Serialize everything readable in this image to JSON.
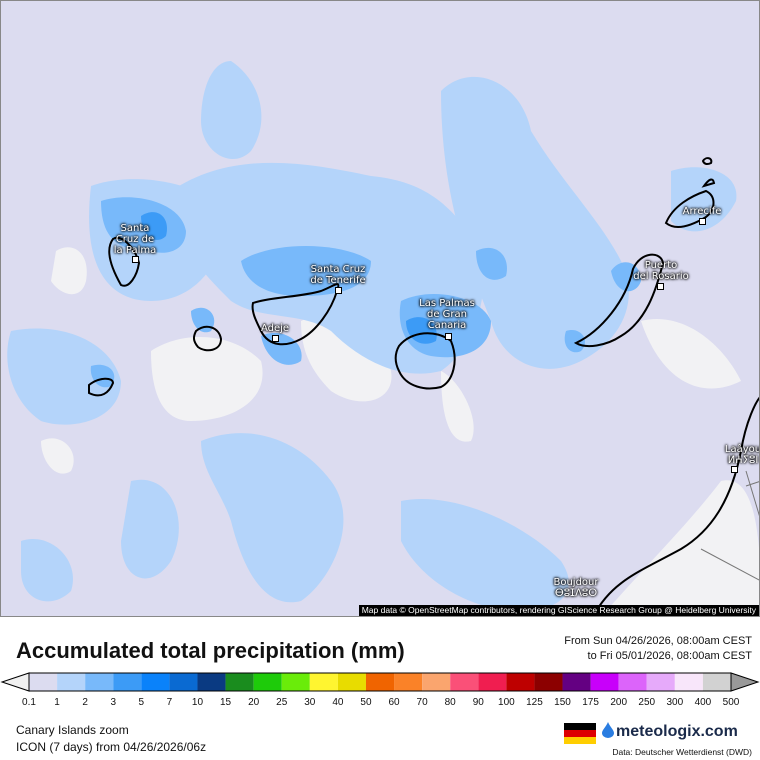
{
  "map": {
    "cities": [
      {
        "name": "Santa Cruz de la Palma",
        "lines": [
          "Santa",
          "Cruz de",
          "la Palma"
        ]
      },
      {
        "name": "Santa Cruz de Tenerife",
        "lines": [
          "Santa Cruz",
          "de Tenerife"
        ]
      },
      {
        "name": "Adeje",
        "lines": [
          "Adeje"
        ]
      },
      {
        "name": "Las Palmas de Gran Canaria",
        "lines": [
          "Las Palmas",
          "de Gran",
          "Canaria"
        ]
      },
      {
        "name": "Puerto del Rosario",
        "lines": [
          "Puerto",
          "del Rosario"
        ]
      },
      {
        "name": "Arrecife",
        "lines": [
          "Arrecife"
        ]
      },
      {
        "name": "Laâyoune",
        "lines": [
          "Laâyou",
          "ⵍⵄⵢⵓⵏ"
        ]
      },
      {
        "name": "Boujdour",
        "lines": [
          "Boujdour",
          "ⴱⵓⵊⴷⵓⵔ"
        ]
      }
    ],
    "attribution": "Map data © OpenStreetMap contributors, rendering GIScience Research Group @ Heidelberg University"
  },
  "legend": {
    "title": "Accumulated total precipitation (mm)",
    "period_from": "From Sun 04/26/2026, 08:00am CEST",
    "period_to": "to Fri 05/01/2026, 08:00am CEST",
    "ticks": [
      "0.1",
      "1",
      "2",
      "3",
      "5",
      "7",
      "10",
      "15",
      "20",
      "25",
      "30",
      "40",
      "50",
      "60",
      "70",
      "80",
      "90",
      "100",
      "125",
      "150",
      "175",
      "200",
      "250",
      "300",
      "400",
      "500"
    ],
    "colors": [
      "#dcdcf0",
      "#b4d4fa",
      "#78b9fa",
      "#3c9bf6",
      "#0a82fa",
      "#0a6ad2",
      "#0a3a82",
      "#1a8c1e",
      "#1ecb0a",
      "#6aec0a",
      "#fff530",
      "#e8dc00",
      "#f06400",
      "#fa8228",
      "#faa56e",
      "#fa5078",
      "#f01e50",
      "#be0000",
      "#8c0000",
      "#640082",
      "#c800fa",
      "#dc64fa",
      "#e6aafa",
      "#f8e6fa",
      "#d2d2d2"
    ],
    "under_color": "#f0f0f0",
    "over_color": "#999999"
  },
  "footer": {
    "region": "Canary Islands zoom",
    "model": "ICON (7 days) from  04/26/2026/06z",
    "brand": "meteologix.com",
    "source": "Data: Deutscher Wetterdienst  (DWD)",
    "flag_colors": [
      "#000000",
      "#dd0000",
      "#ffce00"
    ]
  }
}
